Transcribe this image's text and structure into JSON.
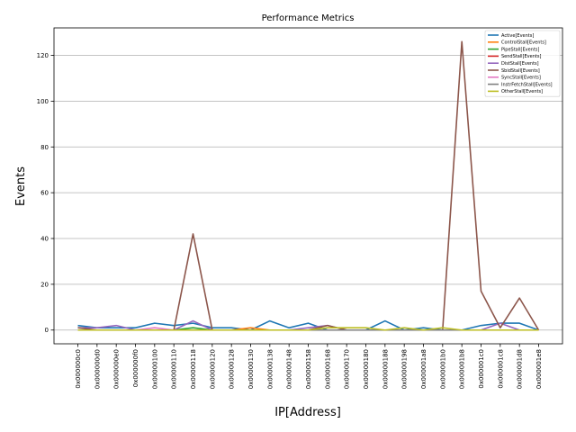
{
  "chart_data": {
    "type": "line",
    "title": "Performance Metrics",
    "xlabel": "IP[Address]",
    "ylabel": "Events",
    "ylim": [
      -6,
      132
    ],
    "yticks": [
      0,
      20,
      40,
      60,
      80,
      100,
      120
    ],
    "grid": "horizontal",
    "legend_position": "top-right",
    "categories": [
      "0x000000c0",
      "0x000000d0",
      "0x000000e0",
      "0x000000f0",
      "0x00000100",
      "0x00000110",
      "0x00000118",
      "0x00000120",
      "0x00000128",
      "0x00000130",
      "0x00000138",
      "0x00000148",
      "0x00000158",
      "0x00000168",
      "0x00000170",
      "0x00000180",
      "0x00000188",
      "0x00000198",
      "0x000001a8",
      "0x000001b0",
      "0x000001b8",
      "0x000001c0",
      "0x000001c8",
      "0x000001d8",
      "0x000001e8"
    ],
    "series": [
      {
        "name": "Active[Events]",
        "color": "#1f77b4",
        "values": [
          2,
          1,
          1,
          1,
          3,
          2,
          3,
          1,
          1,
          0,
          4,
          1,
          3,
          0,
          0,
          0,
          4,
          0,
          1,
          0,
          0,
          2,
          3,
          3,
          0
        ]
      },
      {
        "name": "ControlStall[Events]",
        "color": "#ff7f0e",
        "values": [
          0,
          0,
          0,
          0,
          0,
          0,
          0,
          0,
          0,
          1,
          0,
          0,
          0,
          0,
          0,
          0,
          0,
          0,
          0,
          0,
          0,
          0,
          0,
          0,
          0
        ]
      },
      {
        "name": "PipeStall[Events]",
        "color": "#2ca02c",
        "values": [
          0,
          0,
          0,
          0,
          0,
          0,
          1,
          0,
          0,
          0,
          0,
          0,
          0,
          0,
          0,
          0,
          0,
          0,
          0,
          0,
          0,
          0,
          0,
          0,
          0
        ]
      },
      {
        "name": "SendStall[Events]",
        "color": "#d62728",
        "values": [
          0,
          0,
          0,
          0,
          0,
          0,
          0,
          0,
          0,
          0,
          0,
          0,
          0,
          0,
          0,
          0,
          0,
          0,
          0,
          0,
          0,
          0,
          0,
          0,
          0
        ]
      },
      {
        "name": "DistStall[Events]",
        "color": "#9467bd",
        "values": [
          1,
          1,
          2,
          0,
          0,
          0,
          4,
          0,
          0,
          0,
          0,
          0,
          1,
          2,
          0,
          0,
          0,
          0,
          0,
          0,
          0,
          0,
          3,
          0,
          0
        ]
      },
      {
        "name": "SbidStall[Events]",
        "color": "#8c564b",
        "values": [
          1,
          0,
          0,
          0,
          0,
          0,
          42,
          0,
          0,
          0,
          0,
          0,
          0,
          2,
          0,
          0,
          0,
          0,
          0,
          0,
          126,
          17,
          1,
          14,
          0
        ]
      },
      {
        "name": "SyncStall[Events]",
        "color": "#e377c2",
        "values": [
          0,
          0,
          0,
          0,
          1,
          0,
          0,
          0,
          0,
          0,
          0,
          0,
          0,
          0,
          0,
          0,
          0,
          0,
          0,
          0,
          0,
          0,
          0,
          0,
          0
        ]
      },
      {
        "name": "InstrFetchStall[Events]",
        "color": "#7f7f7f",
        "values": [
          0,
          0,
          0,
          0,
          0,
          0,
          0,
          0,
          0,
          0,
          0,
          0,
          0,
          0,
          0,
          0,
          0,
          0,
          0,
          0,
          0,
          0,
          0,
          0,
          0
        ]
      },
      {
        "name": "OtherStall[Events]",
        "color": "#bcbd22",
        "values": [
          0,
          0,
          0,
          0,
          0,
          0,
          0,
          0,
          0,
          0,
          0,
          0,
          0,
          1,
          1,
          1,
          0,
          1,
          0,
          1,
          0,
          0,
          0,
          0,
          0
        ]
      }
    ]
  }
}
